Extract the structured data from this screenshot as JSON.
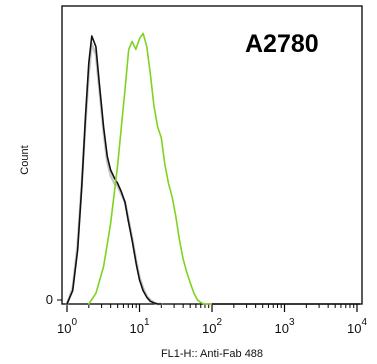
{
  "chart_data": {
    "type": "line",
    "title": "A2780",
    "xlabel": "FL1-H:: Anti-Fab 488",
    "ylabel": "Count",
    "x_scale": "log",
    "xlim": [
      1,
      10000
    ],
    "ylim": [
      0,
      1
    ],
    "x_ticks": [
      {
        "value": 1,
        "base": "10",
        "exp": "0"
      },
      {
        "value": 10,
        "base": "10",
        "exp": "1"
      },
      {
        "value": 100,
        "base": "10",
        "exp": "2"
      },
      {
        "value": 1000,
        "base": "10",
        "exp": "3"
      },
      {
        "value": 10000,
        "base": "10",
        "exp": "4"
      }
    ],
    "y_ticks": [
      {
        "value": 0,
        "label": "0"
      }
    ],
    "grid": false,
    "legend": "none",
    "series": [
      {
        "color": "#c8c8c8",
        "x": [
          1.0,
          1.2,
          1.4,
          1.6,
          1.8,
          2.0,
          2.2,
          2.5,
          2.8,
          3.2,
          3.6,
          4.0,
          4.5,
          5.0,
          5.6,
          6.3,
          7.0,
          8.0,
          9.0,
          10.0,
          11.2,
          12.6,
          14.1,
          15.8,
          17.8,
          20.0
        ],
        "y": [
          0.0,
          0.06,
          0.22,
          0.45,
          0.68,
          0.86,
          0.97,
          0.93,
          0.8,
          0.64,
          0.53,
          0.48,
          0.45,
          0.44,
          0.41,
          0.38,
          0.32,
          0.24,
          0.16,
          0.1,
          0.06,
          0.03,
          0.015,
          0.005,
          0.0,
          0.0
        ]
      },
      {
        "color": "#111111",
        "x": [
          1.0,
          1.2,
          1.4,
          1.6,
          1.8,
          2.0,
          2.2,
          2.5,
          2.8,
          3.2,
          3.6,
          4.0,
          4.5,
          5.0,
          5.6,
          6.3,
          7.0,
          8.0,
          9.0,
          10.0,
          11.2,
          12.6,
          14.1,
          15.8,
          17.8,
          20.0
        ],
        "y": [
          0.0,
          0.05,
          0.2,
          0.44,
          0.7,
          0.9,
          1.0,
          0.96,
          0.82,
          0.66,
          0.55,
          0.5,
          0.47,
          0.45,
          0.42,
          0.38,
          0.31,
          0.23,
          0.15,
          0.09,
          0.05,
          0.025,
          0.01,
          0.004,
          0.0,
          0.0
        ]
      },
      {
        "color": "#7ed321",
        "x": [
          2.0,
          2.5,
          3.2,
          4.0,
          5.0,
          6.3,
          7.1,
          7.9,
          8.9,
          10.0,
          11.2,
          12.6,
          14.1,
          15.8,
          17.8,
          20.0,
          22.4,
          25.1,
          28.2,
          31.6,
          35.5,
          39.8,
          44.7,
          50.1,
          56.2,
          63.1,
          70.8,
          79.4,
          100.0
        ],
        "y": [
          0.0,
          0.04,
          0.14,
          0.3,
          0.52,
          0.8,
          0.95,
          0.98,
          0.95,
          0.99,
          1.01,
          0.96,
          0.86,
          0.74,
          0.66,
          0.62,
          0.52,
          0.45,
          0.4,
          0.33,
          0.24,
          0.17,
          0.12,
          0.08,
          0.04,
          0.015,
          0.005,
          0.0,
          0.0
        ]
      }
    ]
  }
}
